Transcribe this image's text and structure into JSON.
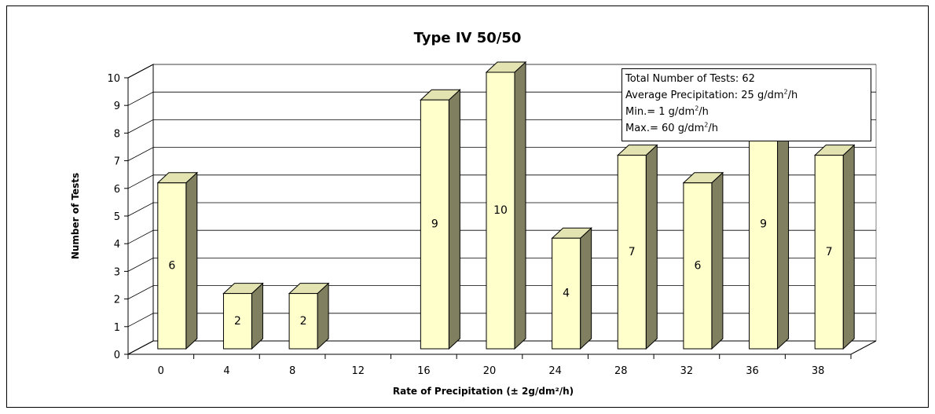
{
  "chart_data": {
    "type": "bar",
    "title": "Type IV 50/50",
    "xlabel": "Rate of Precipitation (± 2g/dm²/h)",
    "ylabel": "Number of Tests",
    "ylim": [
      0,
      10
    ],
    "yticks": [
      "0",
      "1",
      "2",
      "3",
      "4",
      "5",
      "6",
      "7",
      "8",
      "9",
      "10"
    ],
    "categories": [
      "0",
      "4",
      "8",
      "12",
      "16",
      "20",
      "24",
      "28",
      "32",
      "36",
      "38"
    ],
    "values": [
      6,
      2,
      2,
      0,
      9,
      10,
      4,
      7,
      6,
      9,
      7
    ],
    "data_labels": [
      "6",
      "2",
      "2",
      "",
      "9",
      "10",
      "4",
      "7",
      "6",
      "9",
      "7"
    ],
    "grid": true,
    "style": "3d",
    "colors": {
      "bar_front": "#FFFFCC",
      "bar_top": "#E3E3B2",
      "bar_side": "#808060",
      "grid": "#000000"
    }
  },
  "info_box": {
    "line1": "Total Number of Tests: 62",
    "line2_prefix": "Average Precipitation: 25 g/dm",
    "line2_sup": "2",
    "line2_suffix": "/h",
    "line3_prefix": "Min.=   1 g/dm",
    "line3_sup": "2",
    "line3_suffix": "/h",
    "line4_prefix": "Max.= 60 g/dm",
    "line4_sup": "2",
    "line4_suffix": "/h"
  }
}
